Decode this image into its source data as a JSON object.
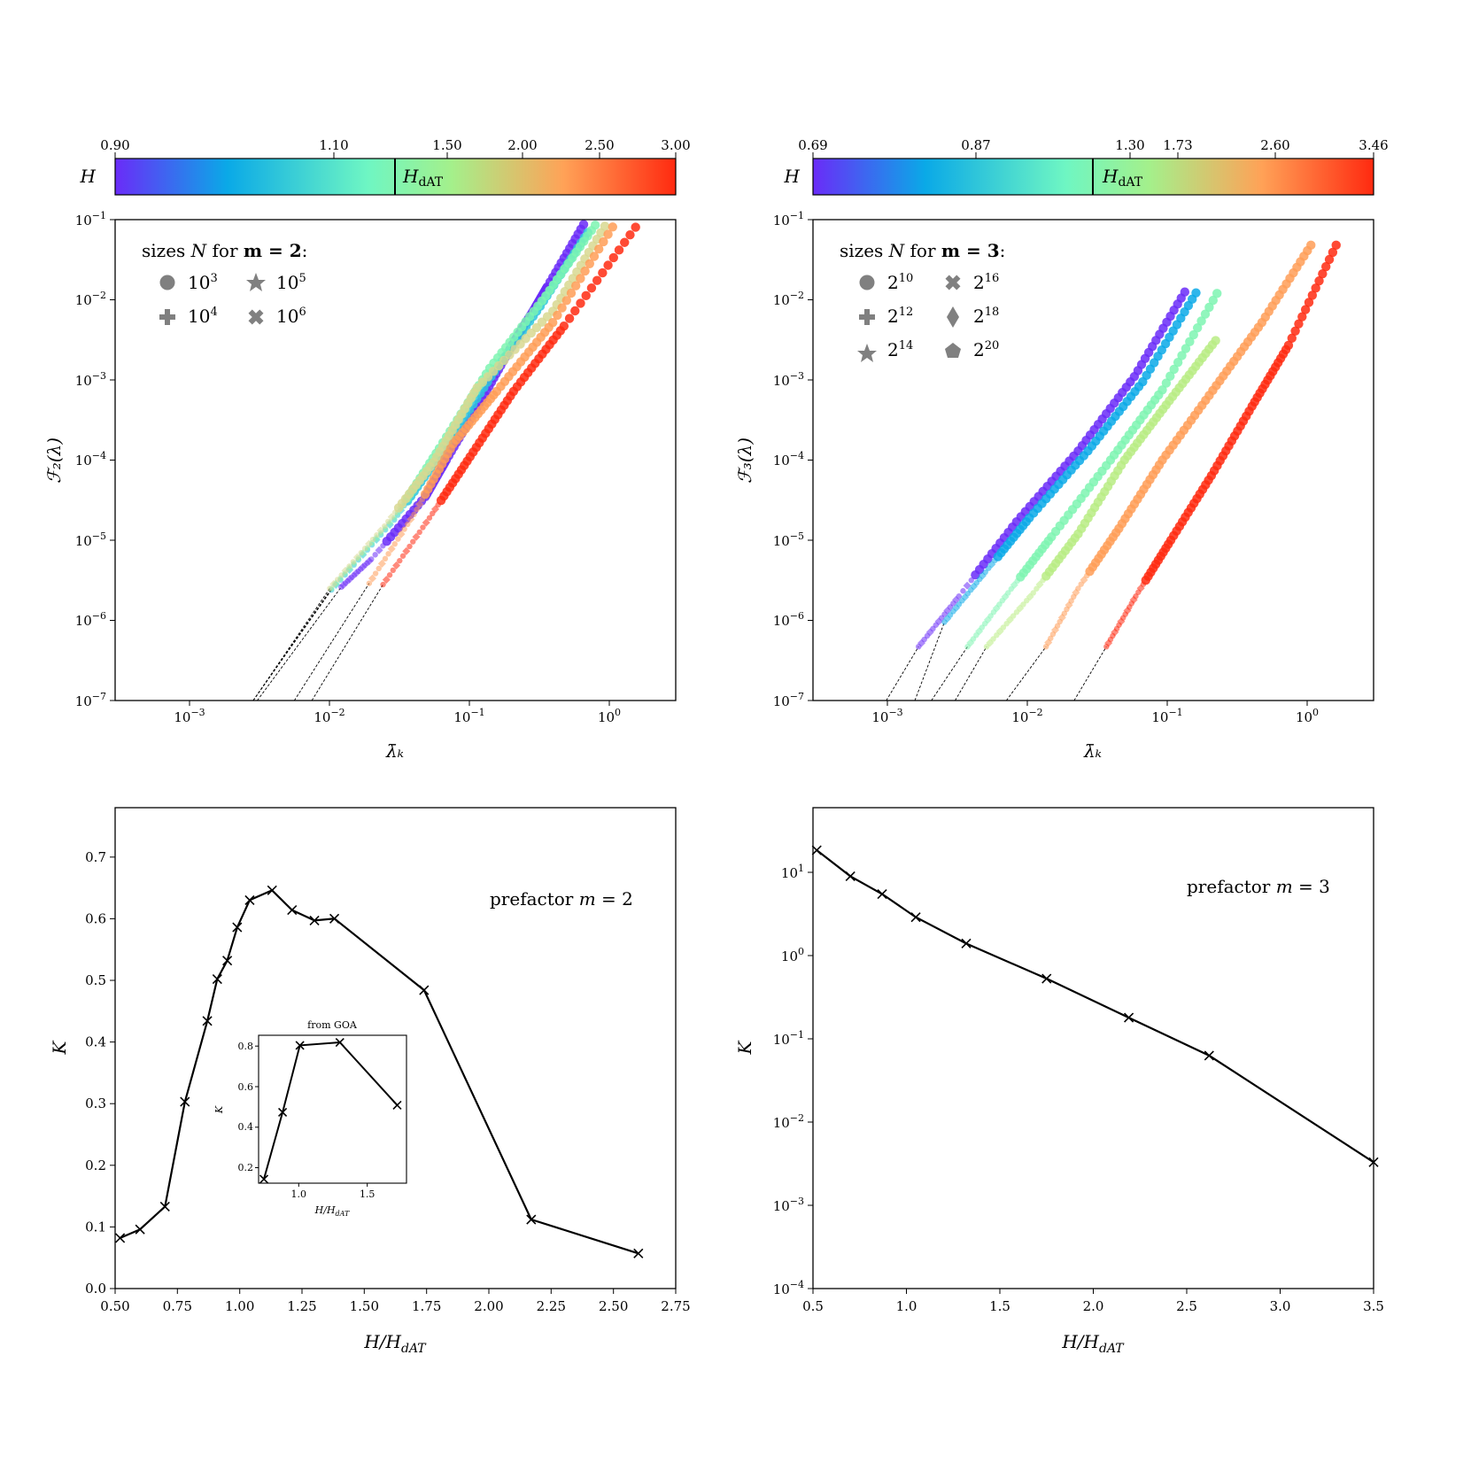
{
  "colors": {
    "frame": "#000000",
    "dashed": "#000000",
    "line": "#000000",
    "marker_gray": "#808080"
  },
  "panel_a": {
    "colorbar": {
      "label": "H",
      "mark_label": "H",
      "mark_sub": "dAT",
      "ticks": [
        "0.90",
        "1.10",
        "1.50",
        "2.00",
        "2.50",
        "3.00"
      ],
      "stops": [
        "#6a2cf8",
        "#0aa9e7",
        "#6ef6c3",
        "#a4f08b",
        "#ffa257",
        "#ff2a10"
      ]
    },
    "ylabel": "ℱ₂(λ)",
    "xlabel": "λ̄ₖ",
    "legend": {
      "title_pre": "sizes ",
      "title_N": "N",
      "title_mid": " for ",
      "title_m": "m = 2",
      "title_post": ":",
      "items": [
        {
          "base": "10",
          "exp": "3"
        },
        {
          "base": "10",
          "exp": "5"
        },
        {
          "base": "10",
          "exp": "4"
        },
        {
          "base": "10",
          "exp": "6"
        }
      ]
    },
    "x_ticks": [
      {
        "base": "10",
        "exp": "−3"
      },
      {
        "base": "10",
        "exp": "−2"
      },
      {
        "base": "10",
        "exp": "−1"
      },
      {
        "base": "10",
        "exp": "0"
      }
    ],
    "y_ticks": [
      {
        "base": "10",
        "exp": "−7"
      },
      {
        "base": "10",
        "exp": "−6"
      },
      {
        "base": "10",
        "exp": "−5"
      },
      {
        "base": "10",
        "exp": "−4"
      },
      {
        "base": "10",
        "exp": "−3"
      },
      {
        "base": "10",
        "exp": "−2"
      },
      {
        "base": "10",
        "exp": "−1"
      }
    ]
  },
  "panel_b": {
    "colorbar": {
      "label": "H",
      "mark_label": "H",
      "mark_sub": "dAT",
      "ticks": [
        "0.69",
        "0.87",
        "1.30",
        "1.73",
        "2.60",
        "3.46"
      ],
      "stops": [
        "#6a2cf8",
        "#0aa9e7",
        "#6ef6c3",
        "#a4f08b",
        "#ffa257",
        "#ff2a10"
      ]
    },
    "ylabel": "ℱ₃(λ)",
    "xlabel": "λ̄ₖ",
    "legend": {
      "title_pre": "sizes ",
      "title_N": "N",
      "title_mid": " for ",
      "title_m": "m = 3",
      "title_post": ":",
      "items": [
        {
          "base": "2",
          "exp": "10"
        },
        {
          "base": "2",
          "exp": "16"
        },
        {
          "base": "2",
          "exp": "12"
        },
        {
          "base": "2",
          "exp": "18"
        },
        {
          "base": "2",
          "exp": "14"
        },
        {
          "base": "2",
          "exp": "20"
        }
      ]
    },
    "x_ticks": [
      {
        "base": "10",
        "exp": "−3"
      },
      {
        "base": "10",
        "exp": "−2"
      },
      {
        "base": "10",
        "exp": "−1"
      },
      {
        "base": "10",
        "exp": "0"
      }
    ],
    "y_ticks": [
      {
        "base": "10",
        "exp": "−7"
      },
      {
        "base": "10",
        "exp": "−6"
      },
      {
        "base": "10",
        "exp": "−5"
      },
      {
        "base": "10",
        "exp": "−4"
      },
      {
        "base": "10",
        "exp": "−3"
      },
      {
        "base": "10",
        "exp": "−2"
      },
      {
        "base": "10",
        "exp": "−1"
      }
    ]
  },
  "panel_c": {
    "annotation_pre": "prefactor ",
    "annotation_m": "m",
    "annotation_post": " = 2",
    "ylabel": "K",
    "xlabel": "H/H",
    "xlabel_sub": "dAT",
    "x_ticks": [
      "0.50",
      "0.75",
      "1.00",
      "1.25",
      "1.50",
      "1.75",
      "2.00",
      "2.25",
      "2.50",
      "2.75"
    ],
    "y_ticks": [
      "0.0",
      "0.1",
      "0.2",
      "0.3",
      "0.4",
      "0.5",
      "0.6",
      "0.7"
    ],
    "inset": {
      "title": "from GOA",
      "ylabel": "K",
      "xlabel": "H/H",
      "xlabel_sub": "dAT",
      "x_ticks": [
        "1.0",
        "1.5"
      ],
      "y_ticks": [
        "0.2",
        "0.4",
        "0.6",
        "0.8"
      ]
    }
  },
  "panel_d": {
    "annotation_pre": "prefactor ",
    "annotation_m": "m",
    "annotation_post": " = 3",
    "ylabel": "K",
    "xlabel": "H/H",
    "xlabel_sub": "dAT",
    "x_ticks": [
      "0.5",
      "1.0",
      "1.5",
      "2.0",
      "2.5",
      "3.0",
      "3.5"
    ],
    "y_ticks": [
      {
        "base": "10",
        "exp": "−4"
      },
      {
        "base": "10",
        "exp": "−3"
      },
      {
        "base": "10",
        "exp": "−2"
      },
      {
        "base": "10",
        "exp": "−1"
      },
      {
        "base": "10",
        "exp": "0"
      },
      {
        "base": "10",
        "exp": "1"
      }
    ]
  },
  "chart_data": [
    {
      "type": "scatter",
      "title": "",
      "xlabel": "λ̄ₖ",
      "ylabel": "ℱ₂(λ)",
      "xscale": "log",
      "yscale": "log",
      "xlim": [
        0.0003,
        3.0
      ],
      "ylim": [
        1e-07,
        0.1
      ],
      "colorbar": {
        "label": "H",
        "ticks": [
          0.9,
          1.1,
          1.5,
          2.0,
          2.5,
          3.0
        ],
        "marker": 1.33
      },
      "series": [
        {
          "name": "H=0.90",
          "color": "#6a2cf8",
          "x": [
            0.0123,
            0.0202,
            0.0491,
            0.0692,
            0.1248,
            0.2131,
            0.2969,
            0.3631,
            0.6918
          ],
          "y": [
            2.6e-06,
            5.8e-06,
            3.5e-05,
            0.0001,
            0.00058,
            0.0031,
            0.0079,
            0.0145,
            0.1
          ],
          "fit": {
            "x": [
              0.0031,
              0.0123
            ],
            "y": [
              1e-07,
              2.6e-06
            ]
          }
        },
        {
          "name": "H=1.10",
          "color": "#2bc5dd",
          "x": [
            0.0105,
            0.0295,
            0.0631,
            0.1445,
            0.3236,
            0.7079
          ],
          "y": [
            2.4e-06,
            1.8e-05,
            0.00012,
            0.0011,
            0.0083,
            0.0691
          ],
          "fit": {
            "x": [
              0.0029,
              0.0105
            ],
            "y": [
              1e-07,
              2.4e-06
            ]
          }
        },
        {
          "name": "H=1.33",
          "color": "#7ef4b1",
          "x": [
            0.0105,
            0.0295,
            0.0617,
            0.1413,
            0.3548,
            0.8511
          ],
          "y": [
            2.5e-06,
            1.9e-05,
            0.00014,
            0.0014,
            0.0112,
            0.1
          ],
          "fit": {
            "x": [
              0.0029,
              0.0105
            ],
            "y": [
              1e-07,
              2.5e-06
            ]
          }
        },
        {
          "name": "H=1.60",
          "color": "#d8d891",
          "x": [
            0.0102,
            0.0251,
            0.0562,
            0.1148,
            0.3981,
            1.0
          ],
          "y": [
            2.5e-06,
            1.5e-05,
            9.4e-05,
            0.0008,
            0.0072,
            0.1
          ],
          "fit": {
            "x": [
              0.0029,
              0.0102
            ],
            "y": [
              1e-07,
              2.5e-06
            ]
          }
        },
        {
          "name": "H=2.50",
          "color": "#ff9d57",
          "x": [
            0.0195,
            0.0407,
            0.0776,
            0.1585,
            0.3981,
            1.1482
          ],
          "y": [
            2.9e-06,
            2.1e-05,
            0.00016,
            0.00072,
            0.0052,
            0.1
          ],
          "fit": {
            "x": [
              0.0057,
              0.0195
            ],
            "y": [
              1e-07,
              2.9e-06
            ]
          }
        },
        {
          "name": "H=3.00",
          "color": "#ff2a10",
          "x": [
            0.0245,
            0.0525,
            0.1023,
            0.2089,
            0.4786,
            1.6982
          ],
          "y": [
            2.8e-06,
            1.9e-05,
            0.00011,
            0.00072,
            0.0047,
            0.1
          ],
          "fit": {
            "x": [
              0.0076,
              0.0245
            ],
            "y": [
              1e-07,
              2.8e-06
            ]
          }
        }
      ]
    },
    {
      "type": "scatter",
      "title": "",
      "xlabel": "λ̄ₖ",
      "ylabel": "ℱ₃(λ)",
      "xscale": "log",
      "yscale": "log",
      "xlim": [
        0.0003,
        3.0
      ],
      "ylim": [
        1e-07,
        0.1
      ],
      "colorbar": {
        "label": "H",
        "ticks": [
          0.69,
          0.87,
          1.3,
          1.73,
          2.6,
          3.46
        ],
        "marker": 1.2
      },
      "series": [
        {
          "name": "H=0.69",
          "color": "#6a2cf8",
          "x": [
            0.0017,
            0.0033,
            0.0085,
            0.0234,
            0.0589,
            0.1349
          ],
          "y": [
            4.7e-07,
            2e-06,
            1.7e-05,
            0.00013,
            0.0011,
            0.0125
          ],
          "fit": {
            "x": [
              0.001,
              0.0017
            ],
            "y": [
              1e-07,
              4.7e-07
            ]
          }
        },
        {
          "name": "H=0.87",
          "color": "#0aa9e7",
          "x": [
            0.0026,
            0.0051,
            0.0105,
            0.0275,
            0.0676,
            0.1622
          ],
          "y": [
            9.5e-07,
            4e-06,
            1.9e-05,
            0.00013,
            0.00095,
            0.0122
          ],
          "fit": {
            "x": [
              0.0016,
              0.0026
            ],
            "y": [
              1e-07,
              9.5e-07
            ]
          }
        },
        {
          "name": "H=1.30",
          "color": "#7ef4b1",
          "x": [
            0.0038,
            0.0074,
            0.0151,
            0.0398,
            0.0933,
            0.2291
          ],
          "y": [
            4.7e-07,
            2.2e-06,
            1.1e-05,
            0.0001,
            0.00075,
            0.012
          ],
          "fit": {
            "x": [
              0.0021,
              0.0038
            ],
            "y": [
              1e-07,
              4.7e-07
            ]
          }
        },
        {
          "name": "H=1.73",
          "color": "#b9ec84",
          "x": [
            0.0052,
            0.0112,
            0.0234,
            0.0501,
            0.1047,
            0.2239
          ],
          "y": [
            4.7e-07,
            2.2e-06,
            1.2e-05,
            0.0001,
            0.00055,
            0.0031
          ],
          "fit": {
            "x": [
              0.0031,
              0.0052
            ],
            "y": [
              1e-07,
              4.7e-07
            ]
          }
        },
        {
          "name": "H=2.60",
          "color": "#ff9d57",
          "x": [
            0.0138,
            0.0234,
            0.0457,
            0.0933,
            0.2138,
            0.4786,
            1.0715
          ],
          "y": [
            4.7e-07,
            2.5e-06,
            1.4e-05,
            0.0001,
            0.00074,
            0.0052,
            0.048
          ],
          "fit": {
            "x": [
              0.0072,
              0.0138
            ],
            "y": [
              1e-07,
              4.7e-07
            ]
          }
        },
        {
          "name": "H=3.46",
          "color": "#ff2a10",
          "x": [
            0.0372,
            0.0603,
            0.1072,
            0.2089,
            0.4074,
            0.7413,
            1.6218
          ],
          "y": [
            4.7e-07,
            2e-06,
            1e-05,
            6.4e-05,
            0.00047,
            0.0027,
            0.048
          ],
          "fit": {
            "x": [
              0.0219,
              0.0372
            ],
            "y": [
              1e-07,
              4.7e-07
            ]
          }
        }
      ]
    },
    {
      "type": "line",
      "title": "prefactor m = 2",
      "xlabel": "H/H_dAT",
      "ylabel": "K",
      "xlim": [
        0.5,
        2.75
      ],
      "ylim": [
        0.0,
        0.78
      ],
      "x": [
        0.52,
        0.6,
        0.7,
        0.78,
        0.87,
        0.91,
        0.95,
        0.99,
        1.04,
        1.13,
        1.21,
        1.3,
        1.38,
        1.74,
        2.17,
        2.6
      ],
      "y": [
        0.082,
        0.096,
        0.133,
        0.303,
        0.434,
        0.502,
        0.532,
        0.586,
        0.63,
        0.646,
        0.614,
        0.597,
        0.6,
        0.484,
        0.112,
        0.057
      ],
      "inset": {
        "type": "line",
        "title": "from GOA",
        "xlabel": "H/H_dAT",
        "ylabel": "K",
        "xlim": [
          0.69,
          1.8
        ],
        "ylim": [
          0.15,
          0.88
        ],
        "x": [
          0.73,
          0.87,
          1.0,
          1.3,
          1.73
        ],
        "y": [
          0.17,
          0.5,
          0.83,
          0.845,
          0.535
        ]
      }
    },
    {
      "type": "line",
      "title": "prefactor m = 3",
      "xlabel": "H/H_dAT",
      "ylabel": "K",
      "yscale": "log",
      "xlim": [
        0.5,
        3.5
      ],
      "ylim": [
        0.0001,
        60
      ],
      "x": [
        0.52,
        0.7,
        0.87,
        1.05,
        1.32,
        1.75,
        2.19,
        2.62,
        3.5
      ],
      "y": [
        18.5,
        9.0,
        5.5,
        2.9,
        1.4,
        0.53,
        0.18,
        0.063,
        0.0033
      ]
    }
  ]
}
